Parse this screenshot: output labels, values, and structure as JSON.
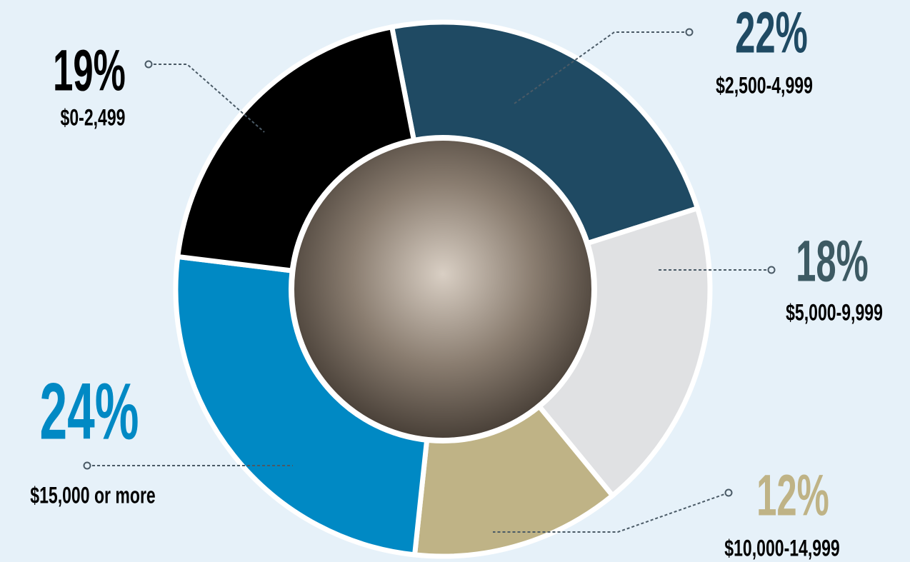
{
  "chart_data": {
    "type": "donut",
    "categories": [
      "$2,500-4,999",
      "$5,000-9,999",
      "$10,000-14,999",
      "$15,000 or more",
      "$0-2,499"
    ],
    "values": [
      22,
      18,
      12,
      24,
      19
    ],
    "value_labels": [
      "22%",
      "18%",
      "12%",
      "24%",
      "19%"
    ],
    "colors": [
      "#1f4a63",
      "#e0e1e3",
      "#bfb386",
      "#0089c4",
      "#000000"
    ],
    "label_colors": [
      "#1f4a63",
      "#3d5a63",
      "#bfb386",
      "#0089c4",
      "#000000"
    ]
  }
}
